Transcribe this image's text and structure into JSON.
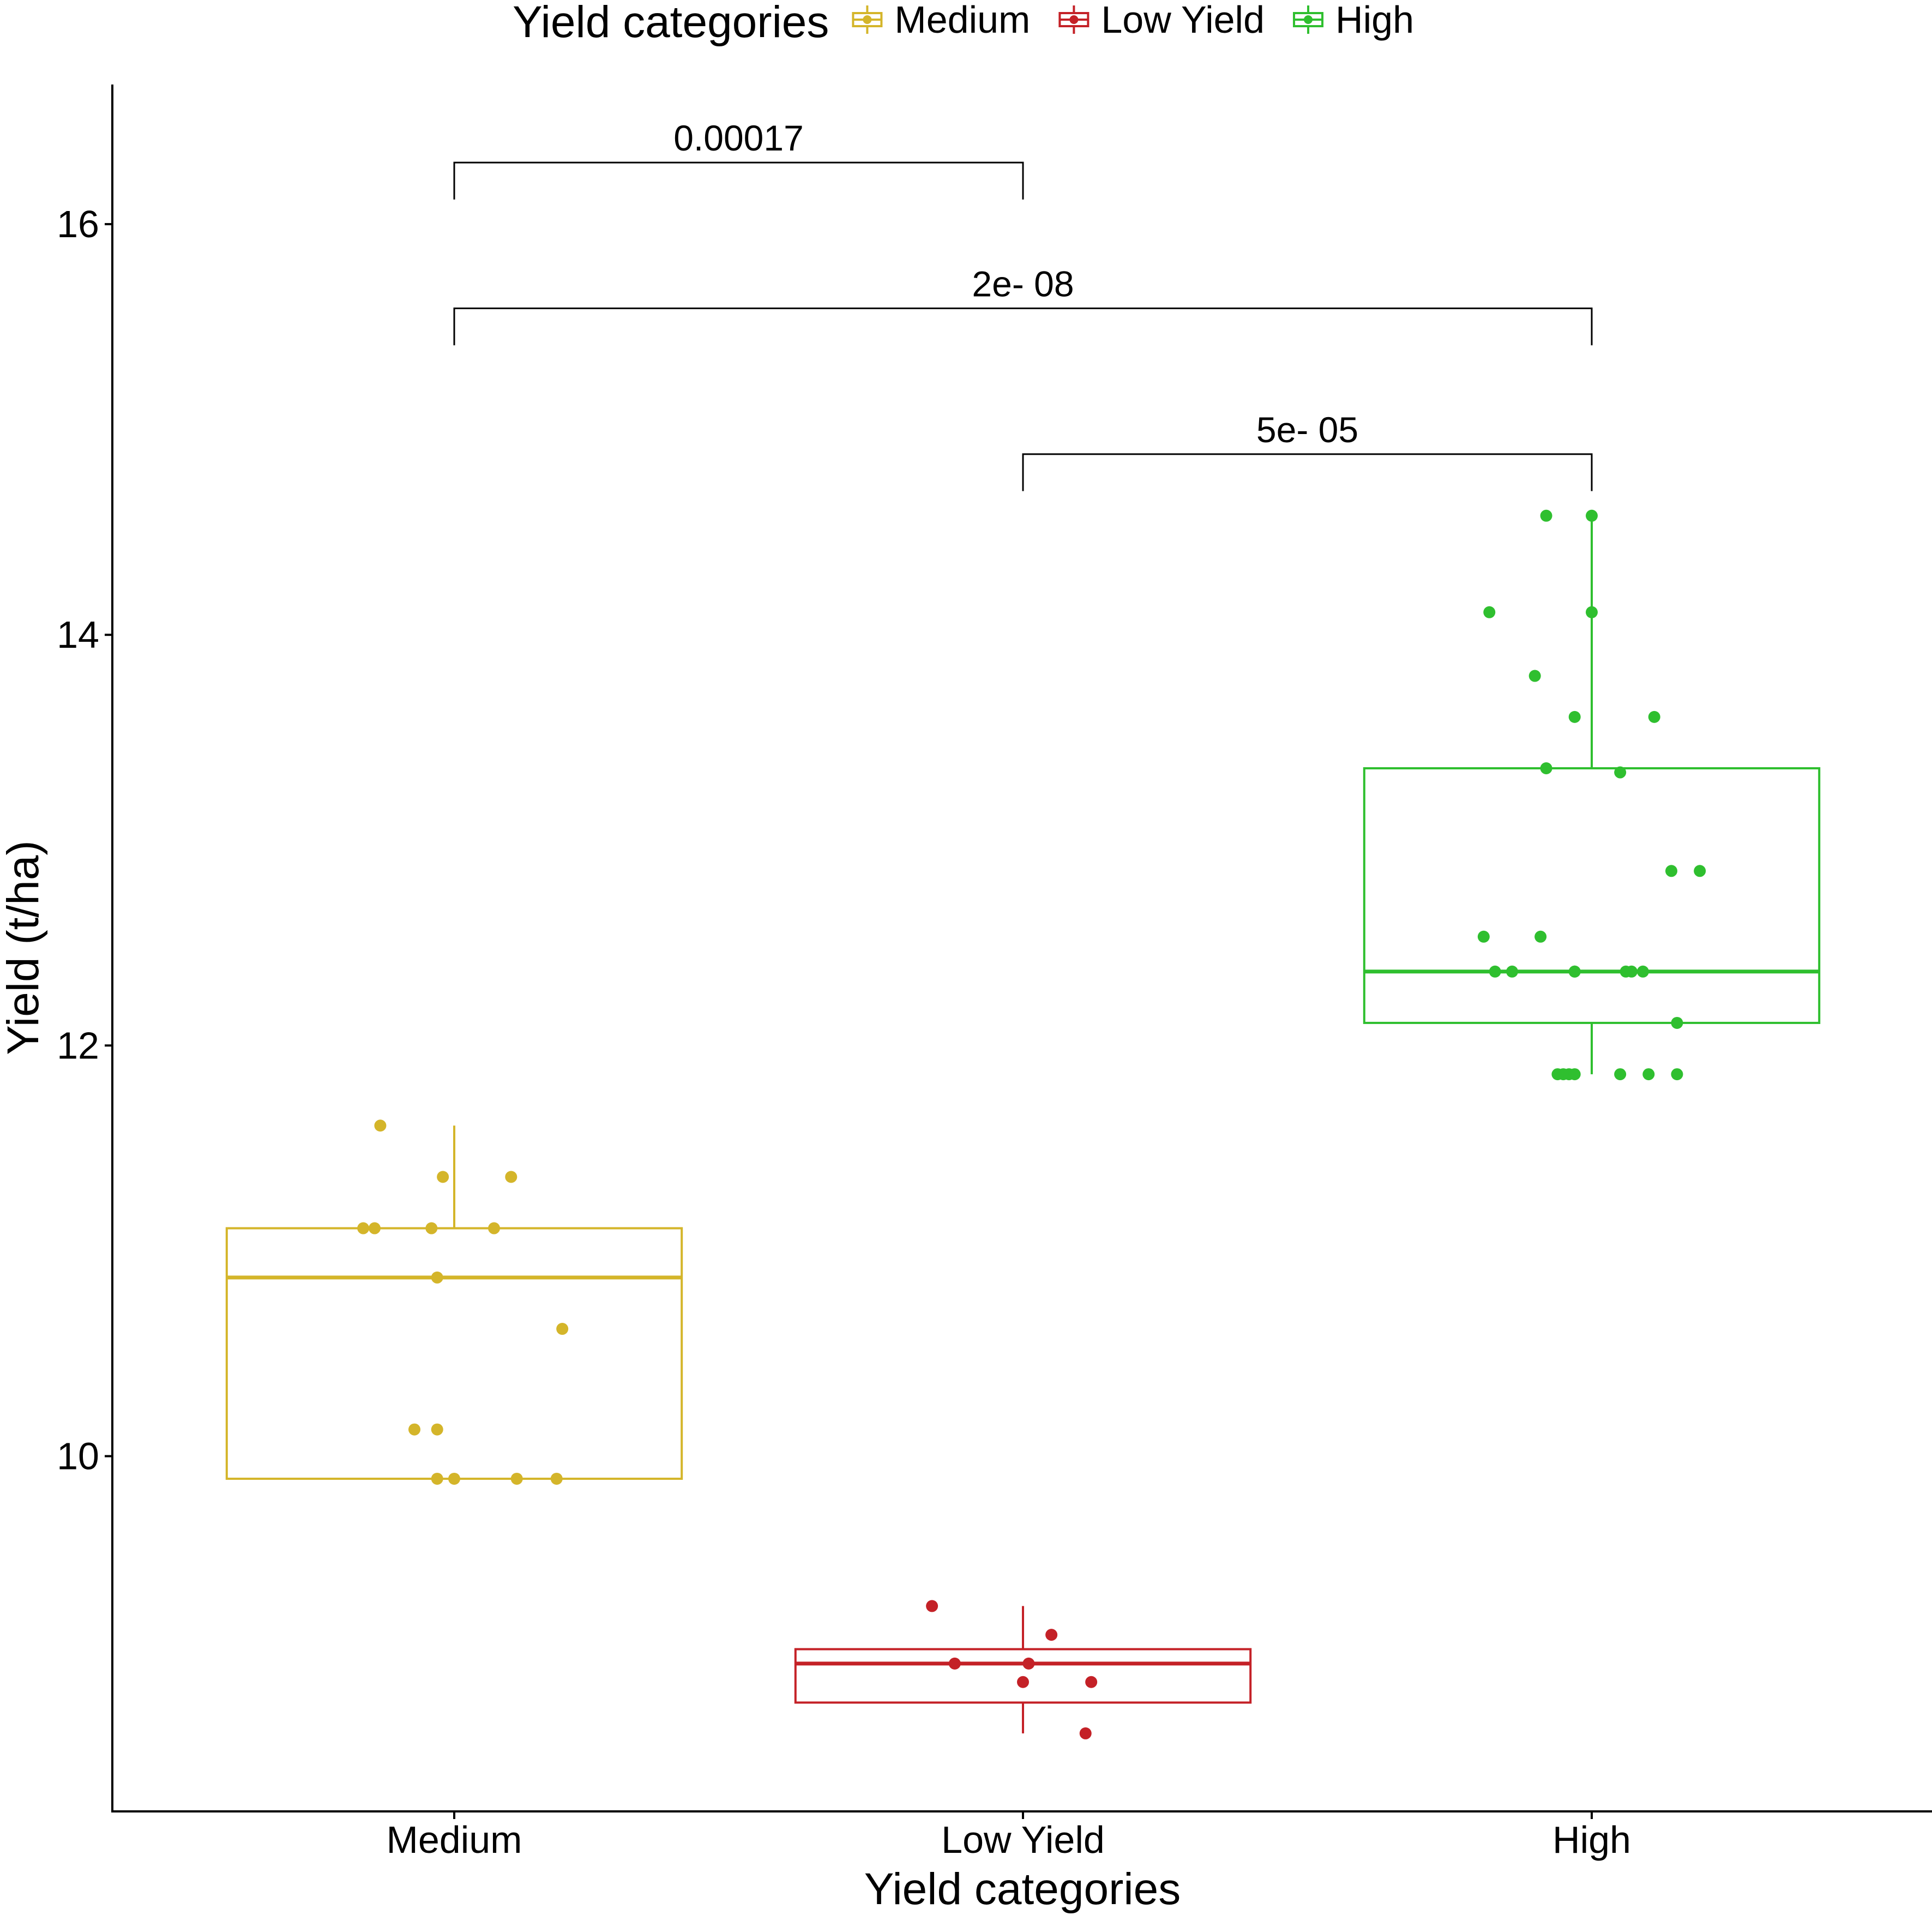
{
  "chart_data": {
    "type": "box",
    "title": "",
    "xlabel": "Yield categories",
    "ylabel": "Yield (t/ha)",
    "ylim": [
      8.27,
      16.68
    ],
    "yticks": [
      10,
      12,
      14,
      16
    ],
    "ytick_labels": [
      "10",
      "12",
      "14",
      "16"
    ],
    "categories": [
      "Medium",
      "Low Yield",
      "High"
    ],
    "legend": {
      "title": "Yield categories",
      "position": "top",
      "entries": [
        "Medium",
        "Low Yield",
        "High"
      ]
    },
    "colors": {
      "Medium": "#d4b52a",
      "Low Yield": "#c42127",
      "High": "#2fbf2f",
      "axis": "#000000"
    },
    "boxes": [
      {
        "category": "Medium",
        "min": 9.89,
        "q1": 9.89,
        "median": 10.87,
        "q3": 11.11,
        "max": 11.61
      },
      {
        "category": "Low Yield",
        "min": 8.65,
        "q1": 8.8,
        "median": 8.99,
        "q3": 9.06,
        "max": 9.27
      },
      {
        "category": "High",
        "min": 11.86,
        "q1": 12.11,
        "median": 12.36,
        "q3": 13.35,
        "max": 14.58
      }
    ],
    "points": [
      {
        "category": "Medium",
        "jitter": -0.13,
        "y": 11.61
      },
      {
        "category": "Medium",
        "jitter": -0.02,
        "y": 11.36
      },
      {
        "category": "Medium",
        "jitter": 0.1,
        "y": 11.36
      },
      {
        "category": "Medium",
        "jitter": -0.16,
        "y": 11.11
      },
      {
        "category": "Medium",
        "jitter": -0.14,
        "y": 11.11
      },
      {
        "category": "Medium",
        "jitter": -0.04,
        "y": 11.11
      },
      {
        "category": "Medium",
        "jitter": 0.07,
        "y": 11.11
      },
      {
        "category": "Medium",
        "jitter": -0.03,
        "y": 10.87
      },
      {
        "category": "Medium",
        "jitter": 0.19,
        "y": 10.62
      },
      {
        "category": "Medium",
        "jitter": -0.07,
        "y": 10.13
      },
      {
        "category": "Medium",
        "jitter": -0.03,
        "y": 10.13
      },
      {
        "category": "Medium",
        "jitter": -0.03,
        "y": 9.89
      },
      {
        "category": "Medium",
        "jitter": 0.0,
        "y": 9.89
      },
      {
        "category": "Medium",
        "jitter": 0.11,
        "y": 9.89
      },
      {
        "category": "Medium",
        "jitter": 0.18,
        "y": 9.89
      },
      {
        "category": "Low Yield",
        "jitter": -0.16,
        "y": 9.27
      },
      {
        "category": "Low Yield",
        "jitter": 0.05,
        "y": 9.13
      },
      {
        "category": "Low Yield",
        "jitter": -0.12,
        "y": 8.99
      },
      {
        "category": "Low Yield",
        "jitter": 0.01,
        "y": 8.99
      },
      {
        "category": "Low Yield",
        "jitter": 0.0,
        "y": 8.9
      },
      {
        "category": "Low Yield",
        "jitter": 0.12,
        "y": 8.9
      },
      {
        "category": "Low Yield",
        "jitter": 0.11,
        "y": 8.65
      },
      {
        "category": "High",
        "jitter": -0.08,
        "y": 14.58
      },
      {
        "category": "High",
        "jitter": 0.0,
        "y": 14.58
      },
      {
        "category": "High",
        "jitter": -0.18,
        "y": 14.11
      },
      {
        "category": "High",
        "jitter": 0.0,
        "y": 14.11
      },
      {
        "category": "High",
        "jitter": -0.1,
        "y": 13.8
      },
      {
        "category": "High",
        "jitter": -0.03,
        "y": 13.6
      },
      {
        "category": "High",
        "jitter": 0.11,
        "y": 13.6
      },
      {
        "category": "High",
        "jitter": -0.08,
        "y": 13.35
      },
      {
        "category": "High",
        "jitter": 0.05,
        "y": 13.33
      },
      {
        "category": "High",
        "jitter": 0.14,
        "y": 12.85
      },
      {
        "category": "High",
        "jitter": 0.19,
        "y": 12.85
      },
      {
        "category": "High",
        "jitter": -0.19,
        "y": 12.53
      },
      {
        "category": "High",
        "jitter": -0.09,
        "y": 12.53
      },
      {
        "category": "High",
        "jitter": -0.17,
        "y": 12.36
      },
      {
        "category": "High",
        "jitter": -0.14,
        "y": 12.36
      },
      {
        "category": "High",
        "jitter": -0.03,
        "y": 12.36
      },
      {
        "category": "High",
        "jitter": -0.03,
        "y": 12.36
      },
      {
        "category": "High",
        "jitter": 0.06,
        "y": 12.36
      },
      {
        "category": "High",
        "jitter": 0.07,
        "y": 12.36
      },
      {
        "category": "High",
        "jitter": 0.09,
        "y": 12.36
      },
      {
        "category": "High",
        "jitter": 0.15,
        "y": 12.11
      },
      {
        "category": "High",
        "jitter": -0.06,
        "y": 11.86
      },
      {
        "category": "High",
        "jitter": -0.05,
        "y": 11.86
      },
      {
        "category": "High",
        "jitter": -0.04,
        "y": 11.86
      },
      {
        "category": "High",
        "jitter": -0.03,
        "y": 11.86
      },
      {
        "category": "High",
        "jitter": 0.05,
        "y": 11.86
      },
      {
        "category": "High",
        "jitter": 0.1,
        "y": 11.86
      },
      {
        "category": "High",
        "jitter": 0.15,
        "y": 11.86
      }
    ],
    "comparisons": [
      {
        "from": "Medium",
        "to": "Low Yield",
        "label": "0.00017",
        "y": 16.3,
        "tip_y": 16.12
      },
      {
        "from": "Medium",
        "to": "High",
        "label": "2e- 08",
        "y": 15.59,
        "tip_y": 15.41
      },
      {
        "from": "Low Yield",
        "to": "High",
        "label": "5e- 05",
        "y": 14.88,
        "tip_y": 14.7
      }
    ]
  }
}
